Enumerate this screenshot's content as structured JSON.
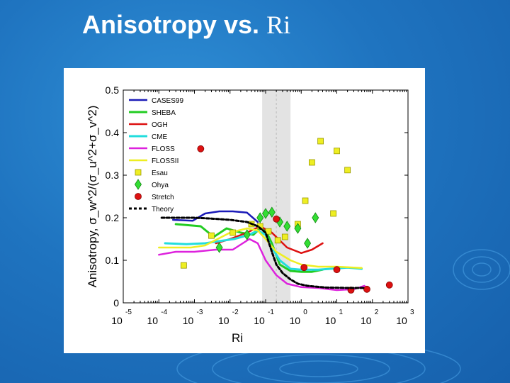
{
  "slide": {
    "title": "Anisotropy vs.",
    "title_math": "Ri",
    "background_color": "#1f74c0"
  },
  "chart_data": {
    "type": "line",
    "xlabel": "Ri",
    "ylabel": "Anisotropy, σ_w^2/(σ_u^2+σ_v^2)",
    "xscale": "log",
    "xlim": [
      1e-05,
      1000
    ],
    "ylim": [
      0,
      0.5
    ],
    "xticks": [
      {
        "base": "10",
        "exp": "-5",
        "value": 1e-05
      },
      {
        "base": "10",
        "exp": "-4",
        "value": 0.0001
      },
      {
        "base": "10",
        "exp": "-3",
        "value": 0.001
      },
      {
        "base": "10",
        "exp": "-2",
        "value": 0.01
      },
      {
        "base": "10",
        "exp": "-1",
        "value": 0.1
      },
      {
        "base": "10",
        "exp": "0",
        "value": 1
      },
      {
        "base": "10",
        "exp": "1",
        "value": 10
      },
      {
        "base": "10",
        "exp": "2",
        "value": 100
      },
      {
        "base": "10",
        "exp": "3",
        "value": 1000
      }
    ],
    "yticks": [
      {
        "label": "0",
        "value": 0
      },
      {
        "label": "0.1",
        "value": 0.1
      },
      {
        "label": "0.2",
        "value": 0.2
      },
      {
        "label": "0.3",
        "value": 0.3
      },
      {
        "label": "0.4",
        "value": 0.4
      },
      {
        "label": "0.5",
        "value": 0.5
      }
    ],
    "shaded_band": {
      "x": [
        0.08,
        0.5
      ],
      "color": "#e3e3e3",
      "line_x": 0.2
    },
    "legend_position": "top-left",
    "series": [
      {
        "name": "CASES99",
        "kind": "line",
        "color": "#1a1ab8",
        "width": 2.5,
        "x": [
          0.00025,
          0.0009,
          0.002,
          0.005,
          0.012,
          0.03,
          0.06
        ],
        "y": [
          0.195,
          0.193,
          0.21,
          0.215,
          0.215,
          0.212,
          0.19
        ]
      },
      {
        "name": "SHEBA",
        "kind": "line",
        "color": "#22cc22",
        "width": 3,
        "x": [
          0.0003,
          0.0015,
          0.0035,
          0.008,
          0.02,
          0.045,
          0.07,
          0.1,
          0.15,
          0.25,
          0.5,
          1.0,
          2.0,
          4.0
        ],
        "y": [
          0.185,
          0.18,
          0.155,
          0.175,
          0.165,
          0.16,
          0.175,
          0.17,
          0.14,
          0.09,
          0.075,
          0.073,
          0.073,
          0.078
        ]
      },
      {
        "name": "OGH",
        "kind": "line",
        "color": "#dd1111",
        "width": 2.5,
        "x": [
          0.004,
          0.01,
          0.03,
          0.07,
          0.15,
          0.4,
          1.0,
          2.0,
          4.0
        ],
        "y": [
          0.14,
          0.15,
          0.165,
          0.18,
          0.165,
          0.13,
          0.117,
          0.125,
          0.14
        ]
      },
      {
        "name": "CME",
        "kind": "line",
        "color": "#22dddd",
        "width": 3,
        "x": [
          0.00015,
          0.0006,
          0.002,
          0.005,
          0.013,
          0.035,
          0.06,
          0.1,
          0.15,
          0.25,
          0.5,
          1.0,
          3.0,
          20.0,
          50.0
        ],
        "y": [
          0.14,
          0.138,
          0.14,
          0.145,
          0.15,
          0.16,
          0.17,
          0.16,
          0.13,
          0.1,
          0.08,
          0.078,
          0.078,
          0.083,
          0.08
        ]
      },
      {
        "name": "FLOSS",
        "kind": "line",
        "color": "#dd22dd",
        "width": 2.5,
        "x": [
          0.0001,
          0.0003,
          0.001,
          0.004,
          0.012,
          0.035,
          0.06,
          0.1,
          0.2,
          0.4,
          1.0,
          3.0,
          10.0,
          30.0,
          60.0
        ],
        "y": [
          0.113,
          0.12,
          0.12,
          0.125,
          0.125,
          0.15,
          0.14,
          0.1,
          0.065,
          0.045,
          0.037,
          0.035,
          0.03,
          0.032,
          0.04
        ]
      },
      {
        "name": "FLOSSII",
        "kind": "line",
        "color": "#eeee22",
        "width": 2.5,
        "x": [
          0.0001,
          0.0008,
          0.002,
          0.01,
          0.03,
          0.06,
          0.1,
          0.2,
          0.5,
          1.0,
          3.0,
          10.0,
          50.0
        ],
        "y": [
          0.13,
          0.13,
          0.135,
          0.165,
          0.175,
          0.17,
          0.15,
          0.12,
          0.1,
          0.09,
          0.085,
          0.085,
          0.082
        ]
      },
      {
        "name": "Esau",
        "kind": "square",
        "color": "#eeee22",
        "x": [
          0.0005,
          0.003,
          0.012,
          0.04,
          0.07,
          0.12,
          0.22,
          0.35,
          0.8,
          1.3,
          2.0,
          3.5,
          10.0,
          20.0,
          8.0
        ],
        "y": [
          0.088,
          0.158,
          0.165,
          0.185,
          0.18,
          0.168,
          0.147,
          0.155,
          0.185,
          0.24,
          0.33,
          0.38,
          0.357,
          0.312,
          0.21
        ]
      },
      {
        "name": "Ohya",
        "kind": "diamond",
        "color": "#33dd33",
        "x": [
          0.005,
          0.03,
          0.07,
          0.1,
          0.15,
          0.25,
          0.4,
          0.8,
          1.5,
          2.5
        ],
        "y": [
          0.13,
          0.16,
          0.2,
          0.21,
          0.213,
          0.19,
          0.18,
          0.175,
          0.14,
          0.2
        ]
      },
      {
        "name": "Stretch",
        "kind": "circle",
        "color": "#dd1111",
        "x": [
          0.0015,
          0.2,
          1.2,
          10.0,
          25.0,
          70.0,
          300.0
        ],
        "y": [
          0.362,
          0.197,
          0.083,
          0.078,
          0.03,
          0.032,
          0.042
        ]
      },
      {
        "name": "Theory",
        "kind": "dashed",
        "color": "#000000",
        "width": 3,
        "x": [
          0.00012,
          0.001,
          0.003,
          0.01,
          0.03,
          0.06,
          0.1,
          0.15,
          0.2,
          0.3,
          0.5,
          0.8,
          1.5,
          5.0,
          20.0,
          60.0
        ],
        "y": [
          0.2,
          0.2,
          0.198,
          0.195,
          0.19,
          0.18,
          0.165,
          0.12,
          0.09,
          0.07,
          0.055,
          0.045,
          0.04,
          0.036,
          0.035,
          0.035
        ]
      }
    ]
  }
}
